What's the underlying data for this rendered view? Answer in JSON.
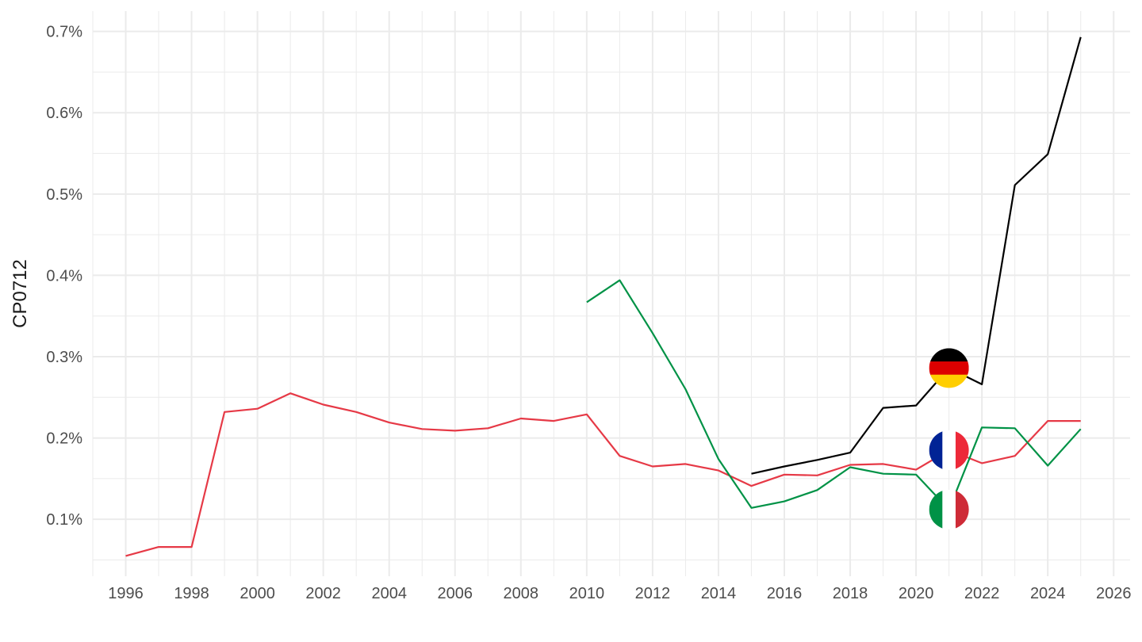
{
  "chart_data": {
    "type": "line",
    "title": "",
    "xlabel": "",
    "ylabel": "CP0712",
    "xlim": [
      1995,
      2026.5
    ],
    "ylim": [
      0.03,
      0.725
    ],
    "x_ticks": [
      1996,
      1998,
      2000,
      2002,
      2004,
      2006,
      2008,
      2010,
      2012,
      2014,
      2016,
      2018,
      2020,
      2022,
      2024,
      2026
    ],
    "x_tick_labels": [
      "1996",
      "1998",
      "2000",
      "2002",
      "2004",
      "2006",
      "2008",
      "2010",
      "2012",
      "2014",
      "2016",
      "2018",
      "2020",
      "2022",
      "2024",
      "2026"
    ],
    "y_ticks": [
      0.1,
      0.2,
      0.3,
      0.4,
      0.5,
      0.6,
      0.7
    ],
    "y_tick_labels": [
      "0.1%",
      "0.2%",
      "0.3%",
      "0.4%",
      "0.5%",
      "0.6%",
      "0.7%"
    ],
    "grid": true,
    "legend": "flag markers at 2021",
    "series": [
      {
        "key": "france",
        "color": "#e63946",
        "marker": "flag-france-icon",
        "marker_x": 2021,
        "marker_y": 0.185,
        "x": [
          1996,
          1997,
          1998,
          1999,
          2000,
          2001,
          2002,
          2003,
          2004,
          2005,
          2006,
          2007,
          2008,
          2009,
          2010,
          2011,
          2012,
          2013,
          2014,
          2015,
          2016,
          2017,
          2018,
          2019,
          2020,
          2021,
          2022,
          2023,
          2024,
          2025
        ],
        "y": [
          0.055,
          0.066,
          0.066,
          0.232,
          0.236,
          0.255,
          0.241,
          0.232,
          0.219,
          0.211,
          0.209,
          0.212,
          0.224,
          0.221,
          0.229,
          0.178,
          0.165,
          0.168,
          0.16,
          0.141,
          0.155,
          0.154,
          0.167,
          0.168,
          0.161,
          0.185,
          0.169,
          0.178,
          0.221,
          0.221
        ]
      },
      {
        "key": "italy",
        "color": "#009246",
        "marker": "flag-italy-icon",
        "marker_x": 2021,
        "marker_y": 0.112,
        "x": [
          2010,
          2011,
          2012,
          2013,
          2014,
          2015,
          2016,
          2017,
          2018,
          2019,
          2020,
          2021,
          2022,
          2023,
          2024,
          2025
        ],
        "y": [
          0.367,
          0.394,
          0.329,
          0.26,
          0.174,
          0.114,
          0.122,
          0.136,
          0.164,
          0.156,
          0.155,
          0.112,
          0.213,
          0.212,
          0.166,
          0.211
        ]
      },
      {
        "key": "germany",
        "color": "#000000",
        "marker": "flag-germany-icon",
        "marker_x": 2021,
        "marker_y": 0.286,
        "x": [
          2015,
          2016,
          2017,
          2018,
          2019,
          2020,
          2021,
          2022,
          2023,
          2024,
          2025
        ],
        "y": [
          0.156,
          0.165,
          0.173,
          0.182,
          0.237,
          0.24,
          0.286,
          0.266,
          0.511,
          0.549,
          0.693
        ]
      }
    ]
  }
}
